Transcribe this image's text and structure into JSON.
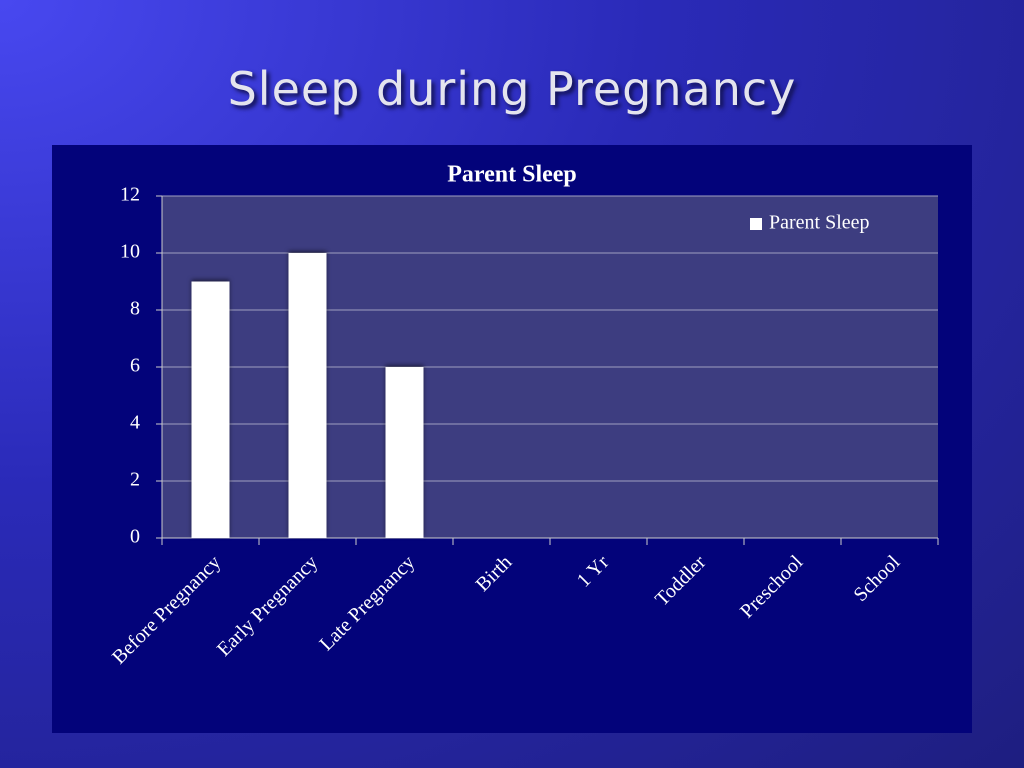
{
  "slide": {
    "title": "Sleep during Pregnancy"
  },
  "chart_data": {
    "type": "bar",
    "title": "Parent Sleep",
    "categories": [
      "Before Pregnancy",
      "Early Pregnancy",
      "Late Pregnancy",
      "Birth",
      "1 Yr",
      "Toddler",
      "Preschool",
      "School"
    ],
    "series": [
      {
        "name": "Parent Sleep",
        "color": "#ffffff",
        "values": [
          9,
          10,
          6,
          null,
          null,
          null,
          null,
          null
        ]
      }
    ],
    "ylim": [
      0,
      12
    ],
    "yticks": [
      0,
      2,
      4,
      6,
      8,
      10,
      12
    ],
    "grid": true,
    "legend": "top-right"
  }
}
